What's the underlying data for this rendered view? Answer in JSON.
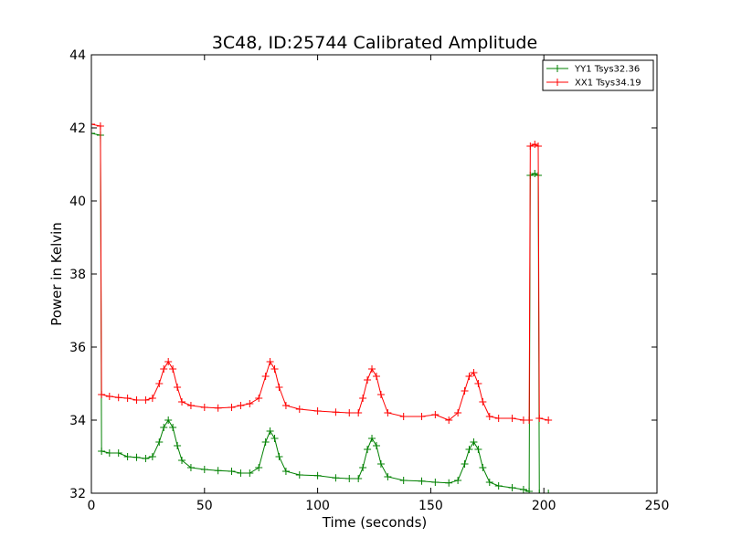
{
  "chart_data": {
    "type": "line",
    "title": "3C48, ID:25744 Calibrated Amplitude",
    "xlabel": "Time (seconds)",
    "ylabel": "Power in Kelvin",
    "xlim": [
      0,
      250
    ],
    "ylim": [
      32,
      44
    ],
    "xticks": [
      0,
      50,
      100,
      150,
      200,
      250
    ],
    "yticks": [
      32,
      34,
      36,
      38,
      40,
      42,
      44
    ],
    "grid": false,
    "legend_position": "top-right",
    "marker": "plus",
    "series": [
      {
        "name": "YY1 Tsys32.36",
        "color": "#008000",
        "points": [
          [
            0,
            41.85
          ],
          [
            4,
            41.8
          ],
          [
            4.5,
            33.15
          ],
          [
            8,
            33.1
          ],
          [
            12,
            33.1
          ],
          [
            16,
            33.0
          ],
          [
            20,
            32.98
          ],
          [
            24,
            32.95
          ],
          [
            27,
            33.0
          ],
          [
            30,
            33.4
          ],
          [
            32,
            33.8
          ],
          [
            34,
            34.0
          ],
          [
            36,
            33.8
          ],
          [
            38,
            33.3
          ],
          [
            40,
            32.9
          ],
          [
            44,
            32.7
          ],
          [
            50,
            32.65
          ],
          [
            56,
            32.62
          ],
          [
            62,
            32.6
          ],
          [
            66,
            32.55
          ],
          [
            70,
            32.55
          ],
          [
            74,
            32.7
          ],
          [
            77,
            33.4
          ],
          [
            79,
            33.7
          ],
          [
            81,
            33.5
          ],
          [
            83,
            33.0
          ],
          [
            86,
            32.6
          ],
          [
            92,
            32.5
          ],
          [
            100,
            32.48
          ],
          [
            108,
            32.42
          ],
          [
            114,
            32.4
          ],
          [
            118,
            32.4
          ],
          [
            120,
            32.7
          ],
          [
            122,
            33.2
          ],
          [
            124,
            33.5
          ],
          [
            126,
            33.3
          ],
          [
            128,
            32.8
          ],
          [
            131,
            32.45
          ],
          [
            138,
            32.35
          ],
          [
            146,
            32.33
          ],
          [
            152,
            32.3
          ],
          [
            158,
            32.28
          ],
          [
            162,
            32.35
          ],
          [
            165,
            32.8
          ],
          [
            167,
            33.2
          ],
          [
            169,
            33.4
          ],
          [
            171,
            33.2
          ],
          [
            173,
            32.7
          ],
          [
            176,
            32.3
          ],
          [
            180,
            32.2
          ],
          [
            186,
            32.15
          ],
          [
            191,
            32.1
          ],
          [
            193.5,
            32.05
          ],
          [
            194,
            40.7
          ],
          [
            196,
            40.75
          ],
          [
            197.5,
            40.7
          ],
          [
            198,
            32.0
          ],
          [
            202,
            32.0
          ]
        ]
      },
      {
        "name": "XX1 Tsys34.19",
        "color": "#ff0000",
        "points": [
          [
            0,
            42.1
          ],
          [
            4,
            42.05
          ],
          [
            4.5,
            34.7
          ],
          [
            8,
            34.65
          ],
          [
            12,
            34.62
          ],
          [
            16,
            34.6
          ],
          [
            20,
            34.55
          ],
          [
            24,
            34.55
          ],
          [
            27,
            34.6
          ],
          [
            30,
            35.0
          ],
          [
            32,
            35.4
          ],
          [
            34,
            35.6
          ],
          [
            36,
            35.4
          ],
          [
            38,
            34.9
          ],
          [
            40,
            34.5
          ],
          [
            44,
            34.4
          ],
          [
            50,
            34.35
          ],
          [
            56,
            34.33
          ],
          [
            62,
            34.35
          ],
          [
            66,
            34.4
          ],
          [
            70,
            34.45
          ],
          [
            74,
            34.6
          ],
          [
            77,
            35.2
          ],
          [
            79,
            35.6
          ],
          [
            81,
            35.4
          ],
          [
            83,
            34.9
          ],
          [
            86,
            34.4
          ],
          [
            92,
            34.3
          ],
          [
            100,
            34.25
          ],
          [
            108,
            34.22
          ],
          [
            114,
            34.2
          ],
          [
            118,
            34.2
          ],
          [
            120,
            34.6
          ],
          [
            122,
            35.1
          ],
          [
            124,
            35.4
          ],
          [
            126,
            35.2
          ],
          [
            128,
            34.7
          ],
          [
            131,
            34.2
          ],
          [
            138,
            34.1
          ],
          [
            146,
            34.1
          ],
          [
            152,
            34.15
          ],
          [
            158,
            34.0
          ],
          [
            162,
            34.2
          ],
          [
            165,
            34.8
          ],
          [
            167,
            35.2
          ],
          [
            169,
            35.3
          ],
          [
            171,
            35.0
          ],
          [
            173,
            34.5
          ],
          [
            176,
            34.1
          ],
          [
            180,
            34.05
          ],
          [
            186,
            34.05
          ],
          [
            191,
            34.0
          ],
          [
            193.5,
            34.0
          ],
          [
            194,
            41.5
          ],
          [
            196,
            41.55
          ],
          [
            197.5,
            41.5
          ],
          [
            198,
            34.05
          ],
          [
            202,
            34.0
          ]
        ]
      }
    ]
  }
}
